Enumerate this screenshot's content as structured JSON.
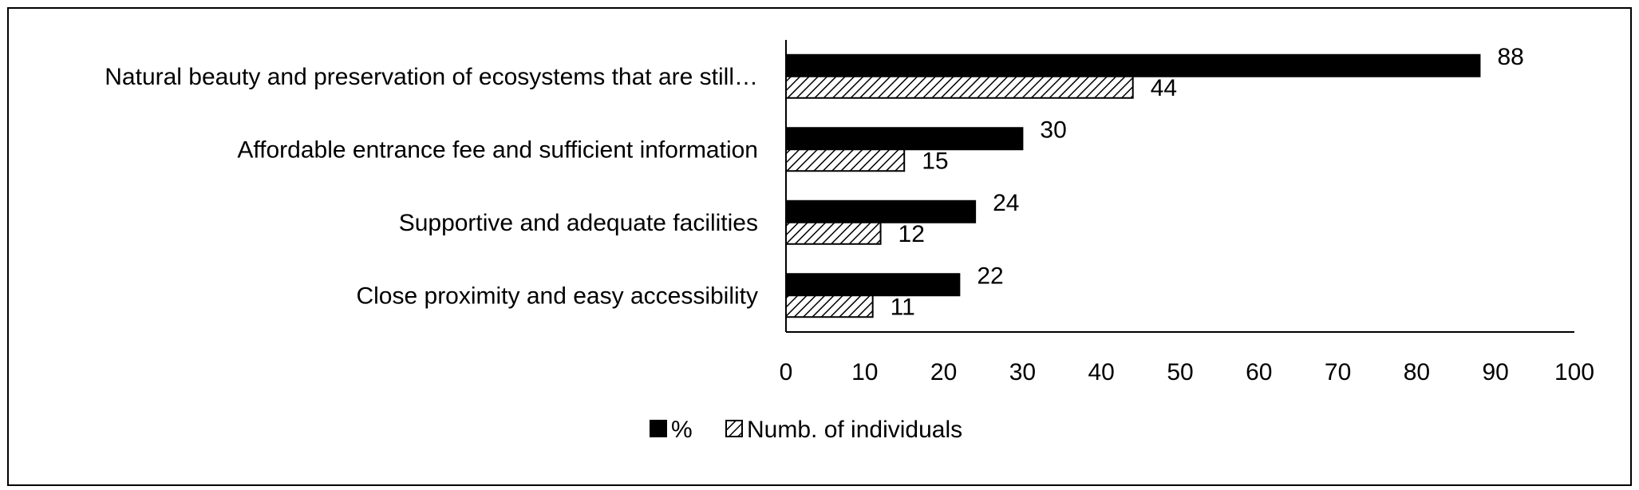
{
  "chart_data": {
    "type": "bar",
    "orientation": "horizontal",
    "categories": [
      "Natural beauty and preservation of ecosystems that are still…",
      "Affordable entrance fee and sufficient information",
      "Supportive and adequate facilities",
      "Close proximity and easy accessibility"
    ],
    "series": [
      {
        "name": "%",
        "values": [
          88,
          30,
          24,
          22
        ],
        "fill": "solid",
        "color": "#000000"
      },
      {
        "name": "Numb. of individuals",
        "values": [
          44,
          15,
          12,
          11
        ],
        "fill": "hatched",
        "color": "#000000"
      }
    ],
    "xlim": [
      0,
      100
    ],
    "xticks": [
      "0",
      "10",
      "20",
      "30",
      "40",
      "50",
      "60",
      "70",
      "80",
      "90",
      "100"
    ],
    "grid": false,
    "legend_position": "bottom",
    "title": "",
    "xlabel": "",
    "ylabel": ""
  }
}
